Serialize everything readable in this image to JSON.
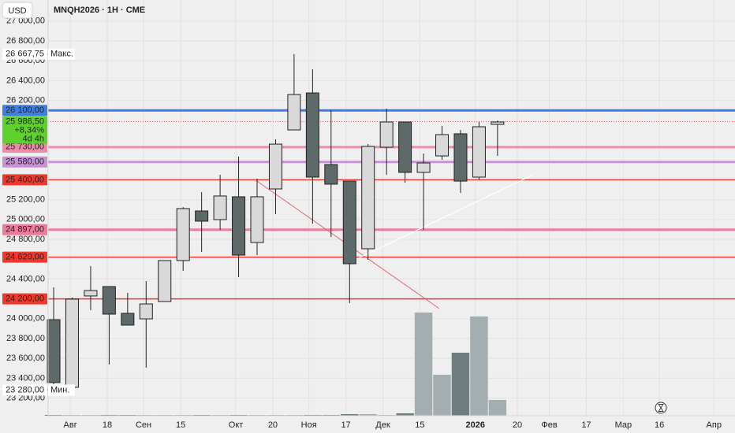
{
  "chart_data": {
    "type": "candlestick",
    "title": "MNQH2026 · 1H · CME",
    "currency": "USD",
    "x": [
      0,
      1,
      2,
      3,
      4,
      5,
      6,
      7,
      8,
      9,
      10,
      11,
      12,
      13,
      14,
      15,
      16,
      17,
      18,
      19,
      20,
      21,
      22,
      23,
      24
    ],
    "open": [
      23990,
      23308,
      24229,
      24324,
      24054,
      23998,
      24173,
      24586,
      25086,
      24999,
      25229,
      24768,
      25308,
      25903,
      26276,
      25554,
      25387,
      24705,
      25729,
      25983,
      25475,
      25641,
      25864,
      25427,
      25959
    ],
    "high": [
      24316,
      24213,
      24530,
      24324,
      24260,
      24379,
      24586,
      25125,
      25276,
      25451,
      25633,
      25411,
      25808,
      26667.75,
      26514,
      26102,
      25387,
      25760,
      26117,
      25983,
      25665,
      25943,
      25903,
      25983,
      25998
    ],
    "low": [
      23340,
      23292,
      24086,
      23538,
      23935,
      23506,
      24173,
      24483,
      24673,
      24895,
      24419,
      24641,
      25054,
      25903,
      24959,
      24824,
      24157,
      24594,
      25451,
      25371,
      24895,
      25602,
      25268,
      25403,
      25641
    ],
    "close": [
      23356,
      24197,
      24284,
      24046,
      23935,
      24149,
      24586,
      25110,
      24983,
      25237,
      24641,
      25229,
      25760,
      26260,
      25427,
      25356,
      24554,
      25737,
      25983,
      25475,
      25570,
      25856,
      25387,
      25935,
      25983
    ],
    "volume": [
      1,
      1,
      1,
      1,
      1,
      1,
      1,
      1,
      1,
      1,
      1,
      1,
      1,
      1,
      1,
      1,
      2,
      2,
      1,
      3,
      131,
      52,
      80,
      126,
      20
    ],
    "up_color": "#d9d9d9",
    "down_color": "#5e6a6a",
    "up_volume_color": "#a4adb0",
    "down_volume_color": "#6f7c80",
    "xlim": [
      -0.3,
      36.84
    ],
    "ylim": [
      23022,
      27213
    ],
    "grid": true,
    "yticks": [
      {
        "value": 27000,
        "label": "27 000,00"
      },
      {
        "value": 26800,
        "label": "26 800,00"
      },
      {
        "value": 26600,
        "label": "26 600,00"
      },
      {
        "value": 26400,
        "label": "26 400,00"
      },
      {
        "value": 26200,
        "label": "26 200,00"
      },
      {
        "value": 25200,
        "label": "25 200,00"
      },
      {
        "value": 25000,
        "label": "25 000,00"
      },
      {
        "value": 24800,
        "label": "24 800,00"
      },
      {
        "value": 24400,
        "label": "24 400,00"
      },
      {
        "value": 24000,
        "label": "24 000,00"
      },
      {
        "value": 23800,
        "label": "23 800,00"
      },
      {
        "value": 23600,
        "label": "23 600,00"
      },
      {
        "value": 23400,
        "label": "23 400,00"
      },
      {
        "value": 23200,
        "label": "23 200,00"
      }
    ],
    "xticks": [
      {
        "value": 0.9,
        "label": "Авг"
      },
      {
        "value": 2.9,
        "label": "18"
      },
      {
        "value": 4.86,
        "label": "Сен"
      },
      {
        "value": 6.87,
        "label": "15"
      },
      {
        "value": 9.85,
        "label": "Окт"
      },
      {
        "value": 11.85,
        "label": "20"
      },
      {
        "value": 13.8,
        "label": "Ноя"
      },
      {
        "value": 15.8,
        "label": "17"
      },
      {
        "value": 17.8,
        "label": "Дек"
      },
      {
        "value": 19.8,
        "label": "15"
      },
      {
        "value": 22.8,
        "label": "2026"
      },
      {
        "value": 25.07,
        "label": "20"
      },
      {
        "value": 26.8,
        "label": "Фев"
      },
      {
        "value": 28.8,
        "label": "17"
      },
      {
        "value": 30.8,
        "label": "Мар"
      },
      {
        "value": 32.75,
        "label": "16"
      },
      {
        "value": 35.7,
        "label": "Апр"
      }
    ],
    "levels": [
      {
        "value": 26100,
        "label": "26 100,00",
        "color": "#3f7de3",
        "width": 3
      },
      {
        "value": 25730,
        "label": "25 730,00",
        "color": "#f08aa8",
        "width": 3
      },
      {
        "value": 25580,
        "label": "25 580,00",
        "color": "#c792d3",
        "width": 3
      },
      {
        "value": 25400,
        "label": "25 400,00",
        "color": "#f0382c",
        "width": 1.5
      },
      {
        "value": 24897,
        "label": "24 897,00",
        "color": "#f07a9c",
        "width": 3
      },
      {
        "value": 24620,
        "label": "24 620,00",
        "color": "#f0382c",
        "width": 1.5
      },
      {
        "value": 24200,
        "label": "24 200,00",
        "color": "#f0382c",
        "width": 1.5
      }
    ],
    "current": {
      "value": 25986.5,
      "label": "25 986,50",
      "change": "+8,34%",
      "countdown": "4d 4h",
      "color": "#5ed12c"
    },
    "max": {
      "value": 26667.75,
      "label": "26 667,75",
      "text": "Макс."
    },
    "min": {
      "value": 23280,
      "label": "23 280,00",
      "text": "Мин."
    }
  }
}
